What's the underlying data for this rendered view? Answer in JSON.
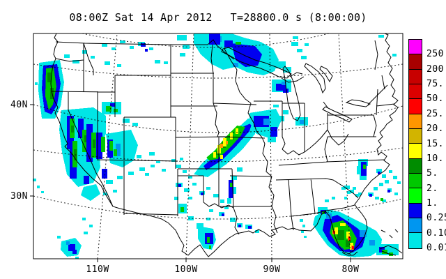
{
  "title": {
    "timestamp": "08:00Z Sat 14 Apr 2012",
    "model_time": "T=28800.0 s (8:00:00)"
  },
  "y_axis": {
    "labels": [
      "40N",
      "30N"
    ]
  },
  "x_axis": {
    "labels": [
      "110W",
      "100W",
      "90W",
      "80W"
    ]
  },
  "colorbar": {
    "labels": [
      "250.",
      "200.",
      "75.",
      "50.",
      "25.",
      "20.",
      "15.",
      "10.",
      "5.",
      "2.",
      "1.",
      "0.25",
      "0.10",
      "0.01"
    ],
    "colors": [
      "#FF00FF",
      "#A80000",
      "#C80000",
      "#DC0000",
      "#FF0000",
      "#FF9600",
      "#D2B400",
      "#FFFF00",
      "#008C00",
      "#00C800",
      "#00FF00",
      "#0000F0",
      "#0096F0",
      "#00E6E6"
    ]
  },
  "map": {
    "region": "Continental United States",
    "field": "precipitation shading",
    "frame": "black rectangle with dashed lat/lon gridlines"
  }
}
